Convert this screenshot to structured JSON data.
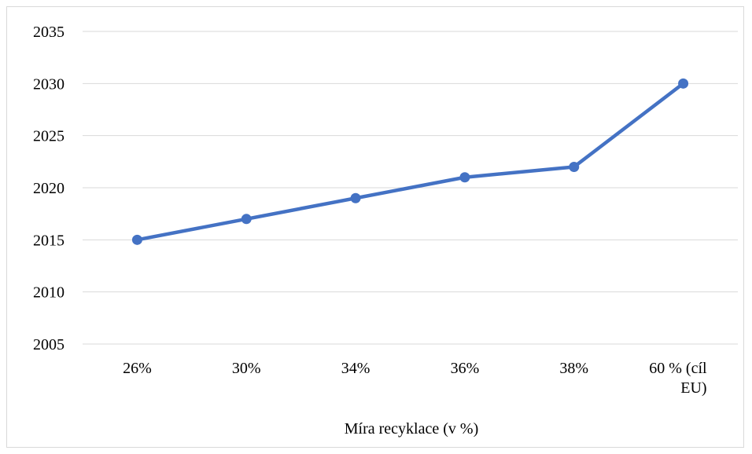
{
  "chart_data": {
    "type": "line",
    "title": "",
    "xlabel": "Míra recyklace (v %)",
    "ylabel": "",
    "categories": [
      "26%",
      "30%",
      "34%",
      "36%",
      "38%",
      "60 % (cíl EU)"
    ],
    "category_lines": [
      [
        "26%"
      ],
      [
        "30%"
      ],
      [
        "34%"
      ],
      [
        "36%"
      ],
      [
        "38%"
      ],
      [
        "60 % (cíl",
        "EU)"
      ]
    ],
    "series": [
      {
        "values": [
          2015,
          2017,
          2019,
          2021,
          2022,
          2030
        ],
        "color": "#4472c4"
      }
    ],
    "ylim": [
      2005,
      2035
    ],
    "yticks": [
      2005,
      2010,
      2015,
      2020,
      2025,
      2030,
      2035
    ],
    "grid": true,
    "legend": "none"
  }
}
